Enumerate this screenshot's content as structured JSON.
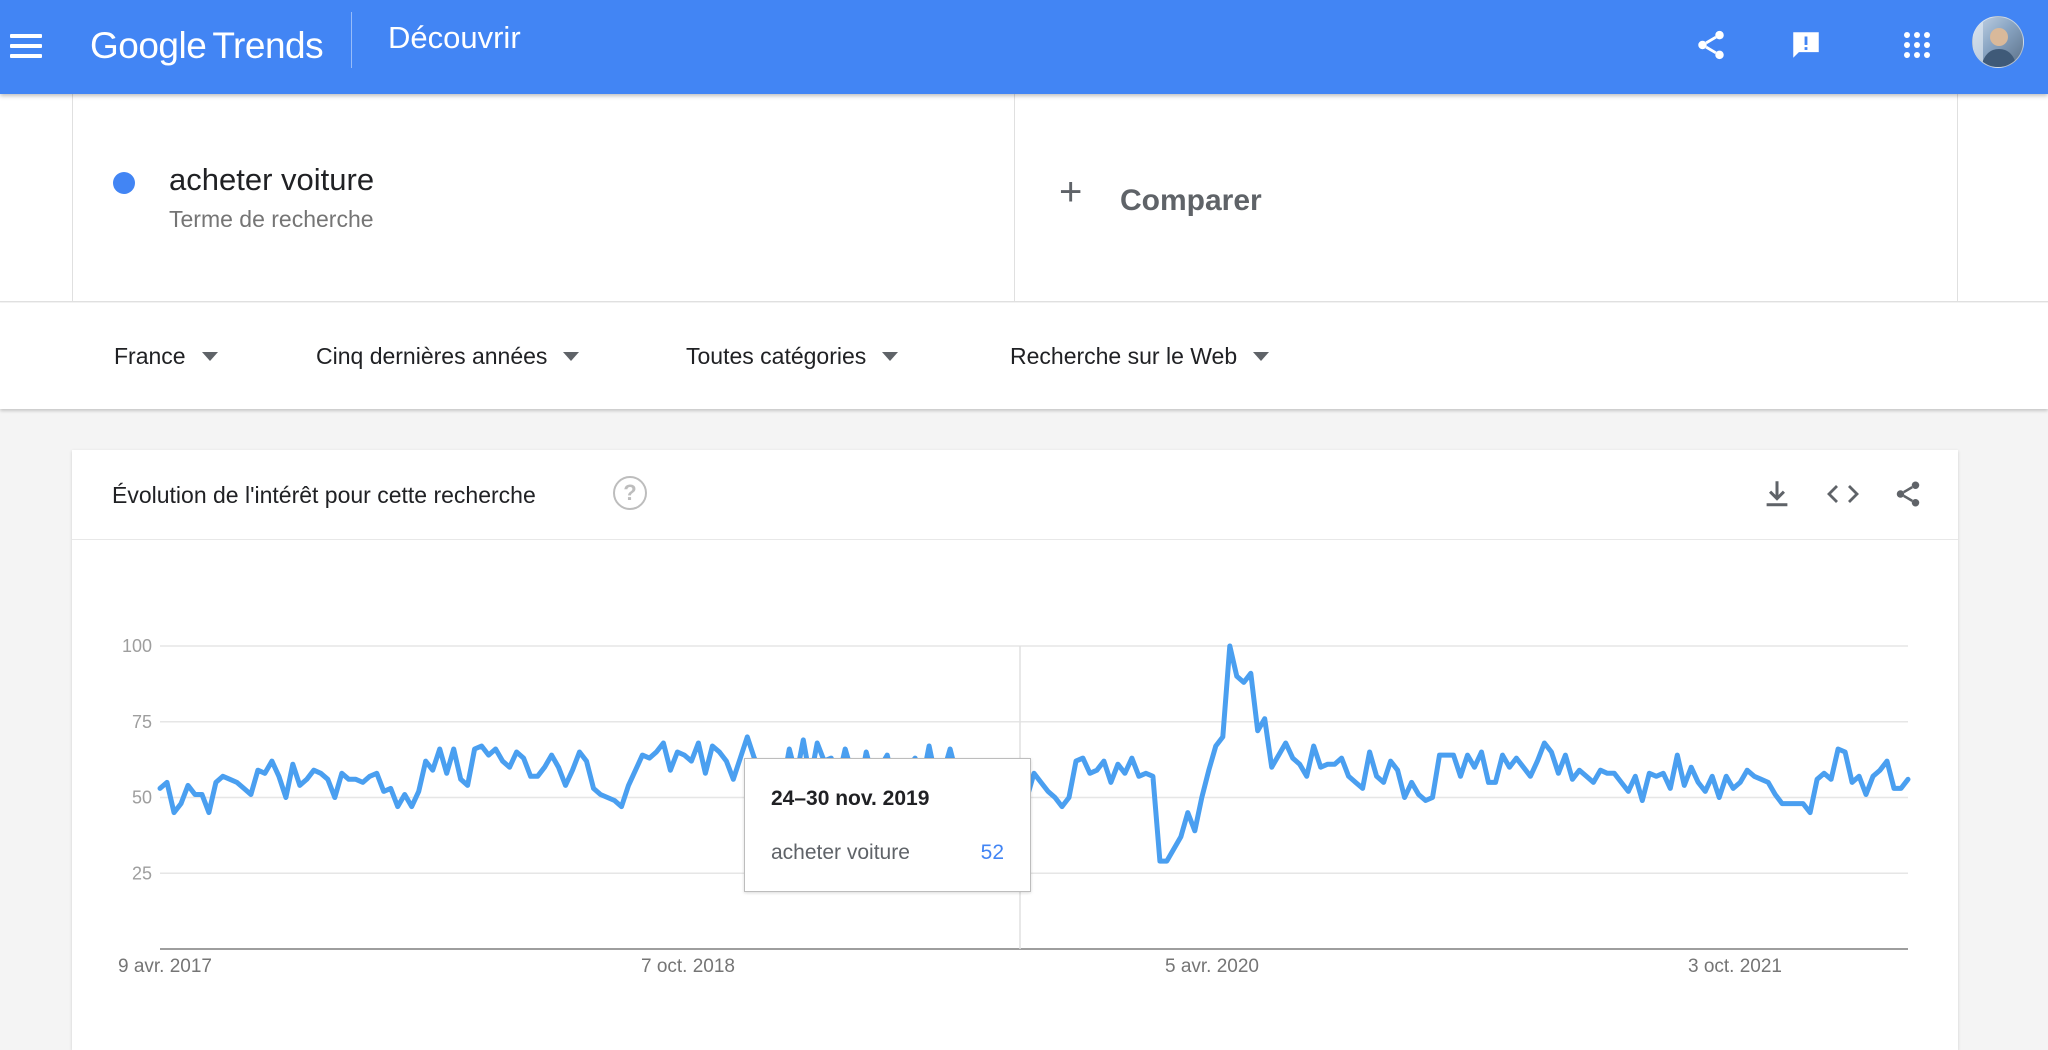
{
  "header": {
    "logo_google": "Google",
    "logo_trends": "Trends",
    "title": "Découvrir",
    "icons": [
      "menu-icon",
      "share-icon",
      "feedback-icon",
      "apps-icon",
      "avatar"
    ]
  },
  "search_term": {
    "name": "acheter voiture",
    "type": "Terme de recherche",
    "color": "#4285f4"
  },
  "compare": {
    "plus": "+",
    "label": "Comparer"
  },
  "filters": {
    "region": "France",
    "period": "Cinq dernières années",
    "category": "Toutes catégories",
    "search_type": "Recherche sur le Web"
  },
  "card": {
    "title": "Évolution de l'intérêt pour cette recherche",
    "help": "?",
    "tools": [
      "download-icon",
      "embed-icon",
      "share-icon"
    ]
  },
  "tooltip": {
    "date": "24–30 nov. 2019",
    "term": "acheter voiture",
    "value": "52"
  },
  "chart_data": {
    "type": "line",
    "xlabel": "",
    "ylabel": "",
    "y_ticks": [
      "25",
      "50",
      "75",
      "100"
    ],
    "ylim": [
      0,
      100
    ],
    "x_tick_labels": [
      "9 avr. 2017",
      "7 oct. 2018",
      "5 avr. 2020",
      "3 oct. 2021"
    ],
    "grid": true,
    "color": "#4a9ff0",
    "highlight_index": 123,
    "series": [
      {
        "name": "acheter voiture",
        "values": [
          53,
          55,
          45,
          48,
          54,
          51,
          51,
          45,
          55,
          57,
          56,
          55,
          53,
          51,
          59,
          58,
          62,
          57,
          50,
          61,
          54,
          56,
          59,
          58,
          56,
          50,
          58,
          56,
          56,
          55,
          57,
          58,
          52,
          53,
          47,
          51,
          47,
          52,
          62,
          59,
          66,
          58,
          66,
          56,
          54,
          66,
          67,
          64,
          66,
          62,
          60,
          65,
          63,
          57,
          57,
          60,
          64,
          60,
          54,
          59,
          65,
          62,
          53,
          51,
          50,
          49,
          47,
          54,
          59,
          64,
          63,
          65,
          68,
          59,
          65,
          64,
          62,
          68,
          58,
          67,
          65,
          62,
          56,
          63,
          70,
          63,
          58,
          49,
          55,
          53,
          66,
          57,
          69,
          56,
          68,
          62,
          63,
          56,
          66,
          58,
          52,
          65,
          56,
          60,
          64,
          54,
          59,
          60,
          63,
          55,
          67,
          56,
          58,
          66,
          57,
          56,
          60,
          55,
          52,
          50,
          54,
          58,
          57,
          52,
          50,
          58,
          55,
          52,
          50,
          47,
          50,
          62,
          63,
          58,
          59,
          62,
          55,
          61,
          58,
          63,
          57,
          58,
          57,
          29,
          29,
          33,
          37,
          45,
          39,
          50,
          59,
          67,
          70,
          100,
          90,
          88,
          91,
          72,
          76,
          60,
          64,
          68,
          63,
          61,
          57,
          67,
          60,
          61,
          61,
          63,
          57,
          55,
          53,
          65,
          57,
          55,
          62,
          59,
          50,
          55,
          51,
          49,
          50,
          64,
          64,
          64,
          57,
          64,
          60,
          65,
          55,
          55,
          64,
          60,
          63,
          60,
          57,
          62,
          68,
          65,
          58,
          64,
          56,
          59,
          57,
          55,
          59,
          58,
          58,
          55,
          52,
          57,
          49,
          58,
          57,
          58,
          53,
          64,
          54,
          60,
          55,
          52,
          57,
          50,
          57,
          53,
          55,
          59,
          57,
          56,
          55,
          51,
          48,
          48,
          48,
          48,
          45,
          56,
          58,
          56,
          66,
          65,
          55,
          57,
          51,
          57,
          59,
          62,
          53,
          53,
          56
        ]
      }
    ]
  }
}
